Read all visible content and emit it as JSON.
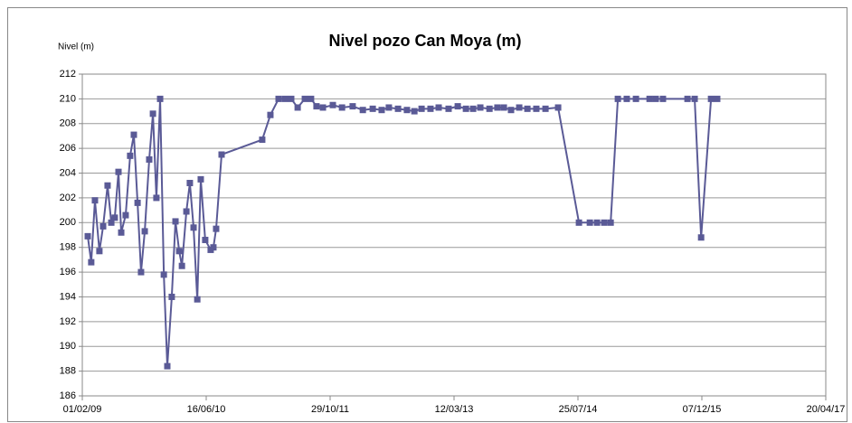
{
  "chart_data": {
    "type": "line",
    "title": "Nivel pozo Can Moya (m)",
    "y_label": "Nivel (m)",
    "ylim": [
      186,
      212
    ],
    "yticks": [
      186,
      188,
      190,
      192,
      194,
      196,
      198,
      200,
      202,
      204,
      206,
      208,
      210,
      212
    ],
    "xlim": [
      "2009-02-01",
      "2017-04-20"
    ],
    "xticks": [
      {
        "value": "2009-02-01",
        "label": "01/02/09"
      },
      {
        "value": "2010-06-16",
        "label": "16/06/10"
      },
      {
        "value": "2011-10-29",
        "label": "29/10/11"
      },
      {
        "value": "2013-03-12",
        "label": "12/03/13"
      },
      {
        "value": "2014-07-25",
        "label": "25/07/14"
      },
      {
        "value": "2015-12-07",
        "label": "07/12/15"
      },
      {
        "value": "2017-04-20",
        "label": "20/04/17"
      }
    ],
    "grid": true,
    "x": [
      "2009-02-23",
      "2009-03-09",
      "2009-03-24",
      "2009-04-11",
      "2009-04-26",
      "2009-05-14",
      "2009-05-29",
      "2009-06-12",
      "2009-06-27",
      "2009-07-08",
      "2009-07-26",
      "2009-08-13",
      "2009-08-28",
      "2009-09-12",
      "2009-09-26",
      "2009-10-11",
      "2009-10-29",
      "2009-11-13",
      "2009-11-27",
      "2009-12-12",
      "2009-12-27",
      "2010-01-10",
      "2010-01-28",
      "2010-02-12",
      "2010-02-27",
      "2010-03-10",
      "2010-03-28",
      "2010-04-11",
      "2010-04-26",
      "2010-05-11",
      "2010-05-25",
      "2010-06-12",
      "2010-07-04",
      "2010-07-15",
      "2010-07-26",
      "2010-08-17",
      "2011-01-28",
      "2011-03-02",
      "2011-04-04",
      "2011-04-30",
      "2011-05-25",
      "2011-06-20",
      "2011-07-19",
      "2011-08-13",
      "2011-09-04",
      "2011-09-30",
      "2011-11-09",
      "2011-12-16",
      "2012-01-28",
      "2012-03-09",
      "2012-04-18",
      "2012-05-24",
      "2012-06-22",
      "2012-07-29",
      "2012-09-03",
      "2012-10-03",
      "2012-11-01",
      "2012-12-07",
      "2013-01-09",
      "2013-02-18",
      "2013-03-27",
      "2013-04-29",
      "2013-05-28",
      "2013-06-26",
      "2013-08-02",
      "2013-09-03",
      "2013-09-29",
      "2013-10-28",
      "2013-11-30",
      "2014-01-02",
      "2014-02-07",
      "2014-03-16",
      "2014-05-06",
      "2014-07-29",
      "2014-09-11",
      "2014-10-10",
      "2014-11-08",
      "2014-12-04",
      "2015-01-02",
      "2015-02-07",
      "2015-03-16",
      "2015-05-10",
      "2015-06-04",
      "2015-07-03",
      "2015-10-10",
      "2015-11-08",
      "2015-12-04",
      "2016-01-13",
      "2016-02-07"
    ],
    "series": [
      {
        "name": "Nivel",
        "color": "#5a5a96",
        "values": [
          198.9,
          196.8,
          201.8,
          197.7,
          199.7,
          203.0,
          200.0,
          200.4,
          204.1,
          199.2,
          200.6,
          205.4,
          207.1,
          201.6,
          196.0,
          199.3,
          205.1,
          208.8,
          202.0,
          210.0,
          195.8,
          188.4,
          194.0,
          200.1,
          197.7,
          196.5,
          200.9,
          203.2,
          199.6,
          193.8,
          203.5,
          198.6,
          197.8,
          198.0,
          199.5,
          205.5,
          206.7,
          208.7,
          210,
          210,
          210,
          209.3,
          210,
          210,
          209.4,
          209.3,
          209.5,
          209.3,
          209.4,
          209.1,
          209.2,
          209.1,
          209.3,
          209.2,
          209.1,
          209.0,
          209.2,
          209.2,
          209.3,
          209.2,
          209.4,
          209.2,
          209.2,
          209.3,
          209.2,
          209.3,
          209.3,
          209.1,
          209.3,
          209.2,
          209.2,
          209.2,
          209.3,
          200,
          200,
          200,
          200,
          200,
          210,
          210,
          210,
          210,
          210,
          210,
          210,
          210,
          198.8,
          210,
          210
        ]
      }
    ]
  }
}
